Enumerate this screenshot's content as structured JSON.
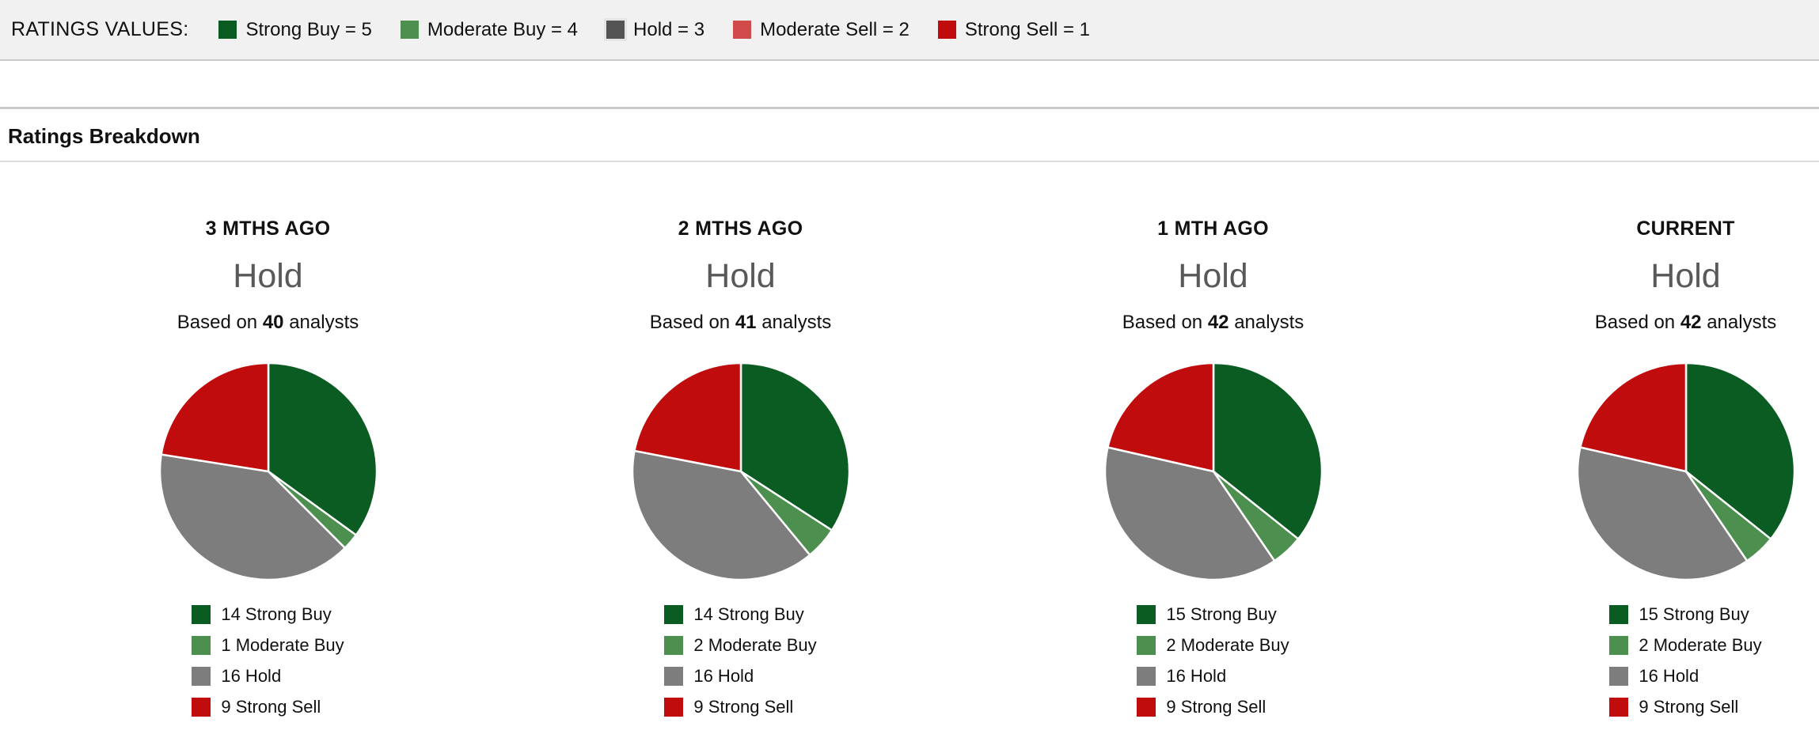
{
  "ratings_values_bar": {
    "label": "RATINGS VALUES:",
    "items": [
      {
        "label": "Strong Buy = 5",
        "color": "#0a5c23"
      },
      {
        "label": "Moderate Buy = 4",
        "color": "#4c8f4f"
      },
      {
        "label": "Hold = 3",
        "color": "#545454"
      },
      {
        "label": "Moderate Sell = 2",
        "color": "#d04a4a"
      },
      {
        "label": "Strong Sell = 1",
        "color": "#c00c0c"
      }
    ]
  },
  "section": {
    "title": "Ratings Breakdown"
  },
  "chart_data": [
    {
      "type": "pie",
      "title": "3 MTHS AGO",
      "consensus": "Hold",
      "analysts": {
        "prefix": "Based on",
        "count": "40",
        "suffix": "analysts"
      },
      "categories": [
        "Strong Buy",
        "Moderate Buy",
        "Hold",
        "Strong Sell"
      ],
      "values": [
        14,
        1,
        16,
        9
      ],
      "colors": [
        "#0a5c23",
        "#4c8f4f",
        "#7d7d7d",
        "#c00c0c"
      ],
      "legend_labels": [
        "14 Strong Buy",
        "1 Moderate Buy",
        "16 Hold",
        "9 Strong Sell"
      ],
      "legend_position": "bottom",
      "start_angle_deg": 0,
      "direction": "clockwise"
    },
    {
      "type": "pie",
      "title": "2 MTHS AGO",
      "consensus": "Hold",
      "analysts": {
        "prefix": "Based on",
        "count": "41",
        "suffix": "analysts"
      },
      "categories": [
        "Strong Buy",
        "Moderate Buy",
        "Hold",
        "Strong Sell"
      ],
      "values": [
        14,
        2,
        16,
        9
      ],
      "colors": [
        "#0a5c23",
        "#4c8f4f",
        "#7d7d7d",
        "#c00c0c"
      ],
      "legend_labels": [
        "14 Strong Buy",
        "2 Moderate Buy",
        "16 Hold",
        "9 Strong Sell"
      ],
      "legend_position": "bottom",
      "start_angle_deg": 0,
      "direction": "clockwise"
    },
    {
      "type": "pie",
      "title": "1 MTH AGO",
      "consensus": "Hold",
      "analysts": {
        "prefix": "Based on",
        "count": "42",
        "suffix": "analysts"
      },
      "categories": [
        "Strong Buy",
        "Moderate Buy",
        "Hold",
        "Strong Sell"
      ],
      "values": [
        15,
        2,
        16,
        9
      ],
      "colors": [
        "#0a5c23",
        "#4c8f4f",
        "#7d7d7d",
        "#c00c0c"
      ],
      "legend_labels": [
        "15 Strong Buy",
        "2 Moderate Buy",
        "16 Hold",
        "9 Strong Sell"
      ],
      "legend_position": "bottom",
      "start_angle_deg": 0,
      "direction": "clockwise"
    },
    {
      "type": "pie",
      "title": "CURRENT",
      "consensus": "Hold",
      "analysts": {
        "prefix": "Based on",
        "count": "42",
        "suffix": "analysts"
      },
      "categories": [
        "Strong Buy",
        "Moderate Buy",
        "Hold",
        "Strong Sell"
      ],
      "values": [
        15,
        2,
        16,
        9
      ],
      "colors": [
        "#0a5c23",
        "#4c8f4f",
        "#7d7d7d",
        "#c00c0c"
      ],
      "legend_labels": [
        "15 Strong Buy",
        "2 Moderate Buy",
        "16 Hold",
        "9 Strong Sell"
      ],
      "legend_position": "bottom",
      "start_angle_deg": 0,
      "direction": "clockwise"
    }
  ],
  "style_colors": {
    "topbar_bg": "#f1f1f1",
    "consensus_text": "#595959",
    "pie_slice_border": "#ffffff"
  }
}
